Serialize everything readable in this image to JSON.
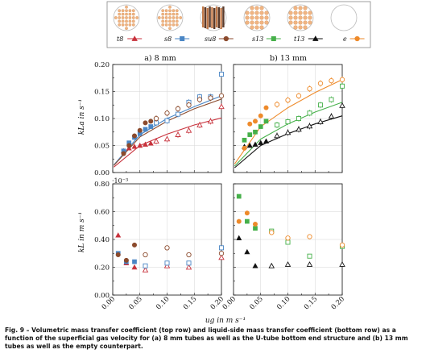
{
  "figure": {
    "caption": "Fig. 9 – Volumetric mass transfer coefficient (top row) and liquid-side mass transfer coefficient (bottom row) as a function of the superficial gas velocity for (a) 8 mm tubes as well as the U-tube bottom end structure and (b) 13 mm tubes as well as the empty counterpart.",
    "legend": [
      {
        "key": "t8",
        "label": "t8",
        "marker": "triangle",
        "color": "#c8323c"
      },
      {
        "key": "s8",
        "label": "s8",
        "marker": "square",
        "color": "#4a86c5"
      },
      {
        "key": "su8",
        "label": "su8",
        "marker": "circle",
        "color": "#8b4a2c"
      },
      {
        "key": "s13",
        "label": "s13",
        "marker": "square",
        "color": "#46b04a"
      },
      {
        "key": "t13",
        "label": "t13",
        "marker": "triangle",
        "color": "#111111"
      },
      {
        "key": "e",
        "label": "e",
        "marker": "circle",
        "color": "#ee8a2a"
      }
    ],
    "ylabel_top": "kLa in s⁻¹",
    "ylabel_bottom": "kL in m s⁻¹",
    "bottom_exponent": "·10⁻³",
    "xlabel": "ug in m s⁻¹"
  },
  "chart_data": [
    {
      "type": "scatter",
      "panel": "top-left",
      "title": "a) 8 mm",
      "xlim": [
        0,
        0.2
      ],
      "ylim": [
        0,
        0.2
      ],
      "yticks": [
        "0.00",
        "0.05",
        "0.10",
        "0.15",
        "0.20"
      ],
      "series": [
        {
          "name": "t8",
          "color": "#c8323c",
          "marker": "triangle",
          "filled": [
            [
              0.02,
              0.04
            ],
            [
              0.03,
              0.045
            ],
            [
              0.04,
              0.048
            ],
            [
              0.05,
              0.05
            ],
            [
              0.06,
              0.052
            ],
            [
              0.07,
              0.054
            ]
          ],
          "open": [
            [
              0.08,
              0.058
            ],
            [
              0.1,
              0.062
            ],
            [
              0.12,
              0.07
            ],
            [
              0.14,
              0.078
            ],
            [
              0.16,
              0.088
            ],
            [
              0.18,
              0.095
            ],
            [
              0.2,
              0.122
            ]
          ],
          "fit": [
            [
              0.002,
              0.01
            ],
            [
              0.05,
              0.05
            ],
            [
              0.1,
              0.071
            ],
            [
              0.15,
              0.088
            ],
            [
              0.2,
              0.101
            ]
          ]
        },
        {
          "name": "s8",
          "color": "#4a86c5",
          "marker": "square",
          "filled": [
            [
              0.02,
              0.04
            ],
            [
              0.03,
              0.055
            ],
            [
              0.04,
              0.065
            ],
            [
              0.05,
              0.072
            ],
            [
              0.06,
              0.08
            ],
            [
              0.07,
              0.085
            ]
          ],
          "open": [
            [
              0.08,
              0.092
            ],
            [
              0.1,
              0.096
            ],
            [
              0.12,
              0.108
            ],
            [
              0.14,
              0.13
            ],
            [
              0.16,
              0.14
            ],
            [
              0.18,
              0.14
            ],
            [
              0.2,
              0.182
            ]
          ],
          "fit": [
            [
              0.002,
              0.014
            ],
            [
              0.05,
              0.07
            ],
            [
              0.1,
              0.1
            ],
            [
              0.15,
              0.122
            ],
            [
              0.2,
              0.142
            ]
          ]
        },
        {
          "name": "su8",
          "color": "#8b4a2c",
          "marker": "circle",
          "filled": [
            [
              0.02,
              0.035
            ],
            [
              0.03,
              0.05
            ],
            [
              0.04,
              0.068
            ],
            [
              0.05,
              0.078
            ],
            [
              0.06,
              0.092
            ],
            [
              0.07,
              0.095
            ]
          ],
          "open": [
            [
              0.08,
              0.1
            ],
            [
              0.1,
              0.11
            ],
            [
              0.12,
              0.118
            ],
            [
              0.14,
              0.125
            ],
            [
              0.16,
              0.135
            ],
            [
              0.18,
              0.138
            ],
            [
              0.2,
              0.142
            ]
          ],
          "fit": [
            [
              0.002,
              0.013
            ],
            [
              0.05,
              0.066
            ],
            [
              0.1,
              0.095
            ],
            [
              0.15,
              0.118
            ],
            [
              0.2,
              0.136
            ]
          ]
        }
      ]
    },
    {
      "type": "scatter",
      "panel": "top-right",
      "title": "b) 13 mm",
      "xlim": [
        0,
        0.2
      ],
      "ylim": [
        0,
        0.2
      ],
      "series": [
        {
          "name": "s13",
          "color": "#46b04a",
          "marker": "square",
          "filled": [
            [
              0.02,
              0.06
            ],
            [
              0.03,
              0.07
            ],
            [
              0.04,
              0.075
            ],
            [
              0.05,
              0.085
            ],
            [
              0.06,
              0.095
            ]
          ],
          "open": [
            [
              0.08,
              0.088
            ],
            [
              0.1,
              0.094
            ],
            [
              0.12,
              0.1
            ],
            [
              0.14,
              0.11
            ],
            [
              0.16,
              0.125
            ],
            [
              0.18,
              0.135
            ],
            [
              0.2,
              0.16
            ]
          ],
          "fit": [
            [
              0.002,
              0.012
            ],
            [
              0.05,
              0.062
            ],
            [
              0.1,
              0.09
            ],
            [
              0.15,
              0.112
            ],
            [
              0.2,
              0.13
            ]
          ]
        },
        {
          "name": "t13",
          "color": "#111111",
          "marker": "triangle",
          "filled": [
            [
              0.02,
              0.048
            ],
            [
              0.03,
              0.05
            ],
            [
              0.04,
              0.052
            ],
            [
              0.05,
              0.055
            ],
            [
              0.06,
              0.058
            ]
          ],
          "open": [
            [
              0.08,
              0.068
            ],
            [
              0.1,
              0.074
            ],
            [
              0.12,
              0.08
            ],
            [
              0.14,
              0.086
            ],
            [
              0.16,
              0.094
            ],
            [
              0.18,
              0.104
            ],
            [
              0.2,
              0.124
            ]
          ],
          "fit": [
            [
              0.002,
              0.009
            ],
            [
              0.05,
              0.05
            ],
            [
              0.1,
              0.072
            ],
            [
              0.15,
              0.09
            ],
            [
              0.2,
              0.105
            ]
          ]
        },
        {
          "name": "e",
          "color": "#ee8a2a",
          "marker": "circle",
          "filled": [
            [
              0.02,
              0.045
            ],
            [
              0.03,
              0.09
            ],
            [
              0.04,
              0.095
            ],
            [
              0.05,
              0.105
            ],
            [
              0.06,
              0.12
            ]
          ],
          "open": [
            [
              0.08,
              0.126
            ],
            [
              0.1,
              0.134
            ],
            [
              0.12,
              0.142
            ],
            [
              0.14,
              0.155
            ],
            [
              0.16,
              0.165
            ],
            [
              0.18,
              0.17
            ],
            [
              0.2,
              0.172
            ]
          ],
          "fit": [
            [
              0.002,
              0.016
            ],
            [
              0.05,
              0.085
            ],
            [
              0.1,
              0.12
            ],
            [
              0.15,
              0.148
            ],
            [
              0.2,
              0.172
            ]
          ]
        }
      ]
    },
    {
      "type": "scatter",
      "panel": "bottom-left",
      "xlim": [
        0,
        0.2
      ],
      "ylim": [
        0,
        0.8
      ],
      "yticks": [
        "0.00",
        "0.20",
        "0.40",
        "0.60",
        "0.80"
      ],
      "xticks": [
        "0.00",
        "0.05",
        "0.10",
        "0.15",
        "0.20"
      ],
      "series": [
        {
          "name": "t8",
          "color": "#c8323c",
          "marker": "triangle",
          "filled": [
            [
              0.01,
              0.43
            ],
            [
              0.025,
              0.23
            ],
            [
              0.04,
              0.2
            ]
          ],
          "open": [
            [
              0.06,
              0.18
            ],
            [
              0.1,
              0.21
            ],
            [
              0.14,
              0.2
            ],
            [
              0.2,
              0.27
            ]
          ]
        },
        {
          "name": "s8",
          "color": "#4a86c5",
          "marker": "square",
          "filled": [
            [
              0.01,
              0.3
            ],
            [
              0.025,
              0.24
            ],
            [
              0.04,
              0.24
            ]
          ],
          "open": [
            [
              0.06,
              0.21
            ],
            [
              0.1,
              0.23
            ],
            [
              0.14,
              0.23
            ],
            [
              0.2,
              0.34
            ]
          ]
        },
        {
          "name": "su8",
          "color": "#8b4a2c",
          "marker": "circle",
          "filled": [
            [
              0.01,
              0.29
            ],
            [
              0.025,
              0.25
            ],
            [
              0.04,
              0.36
            ]
          ],
          "open": [
            [
              0.06,
              0.29
            ],
            [
              0.1,
              0.34
            ],
            [
              0.14,
              0.29
            ],
            [
              0.2,
              0.3
            ]
          ]
        }
      ]
    },
    {
      "type": "scatter",
      "panel": "bottom-right",
      "xlim": [
        0,
        0.2
      ],
      "ylim": [
        0,
        0.8
      ],
      "xticks": [
        "0.00",
        "0.05",
        "0.10",
        "0.15",
        "0.20"
      ],
      "series": [
        {
          "name": "s13",
          "color": "#46b04a",
          "marker": "square",
          "filled": [
            [
              0.01,
              0.71
            ],
            [
              0.025,
              0.53
            ],
            [
              0.04,
              0.48
            ]
          ],
          "open": [
            [
              0.07,
              0.46
            ],
            [
              0.1,
              0.38
            ],
            [
              0.14,
              0.28
            ],
            [
              0.2,
              0.35
            ]
          ]
        },
        {
          "name": "t13",
          "color": "#111111",
          "marker": "triangle",
          "filled": [
            [
              0.01,
              0.41
            ],
            [
              0.025,
              0.31
            ],
            [
              0.04,
              0.21
            ]
          ],
          "open": [
            [
              0.07,
              0.21
            ],
            [
              0.1,
              0.22
            ],
            [
              0.14,
              0.22
            ],
            [
              0.2,
              0.22
            ]
          ]
        },
        {
          "name": "e",
          "color": "#ee8a2a",
          "marker": "circle",
          "filled": [
            [
              0.01,
              0.53
            ],
            [
              0.025,
              0.59
            ],
            [
              0.04,
              0.51
            ]
          ],
          "open": [
            [
              0.07,
              0.45
            ],
            [
              0.1,
              0.41
            ],
            [
              0.14,
              0.42
            ],
            [
              0.2,
              0.36
            ]
          ]
        }
      ]
    }
  ]
}
